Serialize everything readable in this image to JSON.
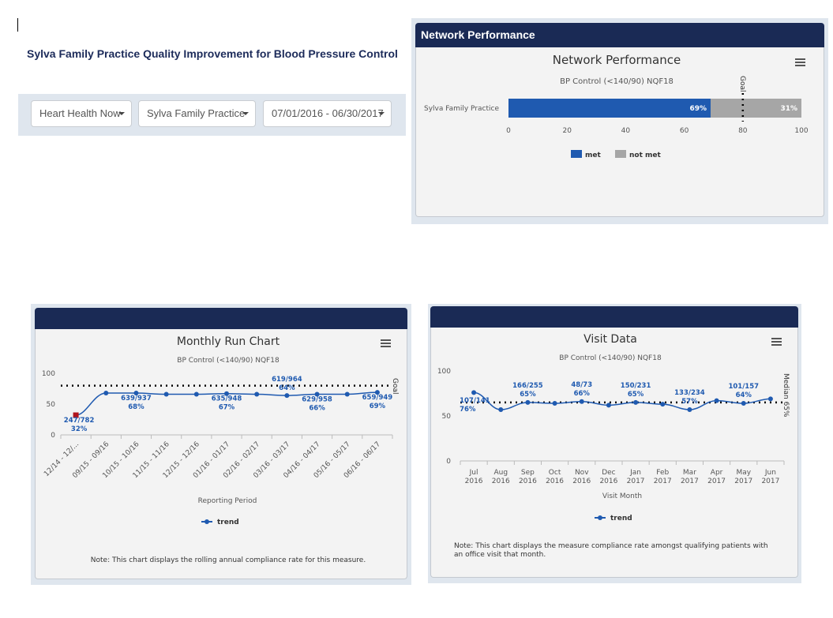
{
  "page": {
    "title": "Sylva Family Practice Quality Improvement for Blood Pressure Control"
  },
  "filters": {
    "program": "Heart Health Now",
    "practice": "Sylva Family Practice",
    "period": "07/01/2016 - 06/30/2017"
  },
  "network_panel": {
    "header": "Network Performance"
  },
  "colors": {
    "navy": "#1a2a55",
    "met": "#1f5ab0",
    "not_met": "#a6a6a6",
    "trend": "#1f5ab0",
    "first_point": "#b0141c"
  },
  "chart_data": [
    {
      "type": "bar",
      "orientation": "horizontal",
      "stacked": true,
      "title": "Network Performance",
      "subtitle": "BP Control (<140/90) NQF18",
      "categories": [
        "Sylva Family Practice"
      ],
      "series": [
        {
          "name": "met",
          "values": [
            69
          ],
          "labels": [
            "69%"
          ]
        },
        {
          "name": "not met",
          "values": [
            31
          ],
          "labels": [
            "31%"
          ]
        }
      ],
      "xlim": [
        0,
        100
      ],
      "ticks": [
        0,
        20,
        40,
        60,
        80,
        100
      ],
      "goal": {
        "value": 80,
        "label": "Goal"
      },
      "legend": "bottom-center",
      "menu_icon": "hamburger-icon"
    },
    {
      "type": "line",
      "title": "Monthly Run Chart",
      "subtitle": "BP Control (<140/90) NQF18",
      "xlabel": "Reporting Period",
      "categories": [
        "12/14 - 12/...",
        "09/15 - 09/16",
        "10/15 - 10/16",
        "11/15 - 11/16",
        "12/15 - 12/16",
        "01/16 - 01/17",
        "02/16 - 02/17",
        "03/16 - 03/17",
        "04/16 - 04/17",
        "05/16 - 05/17",
        "06/16 - 06/17"
      ],
      "series": [
        {
          "name": "trend",
          "values": [
            32,
            68,
            68,
            66,
            66,
            67,
            66,
            64,
            66,
            66,
            69
          ]
        }
      ],
      "point_labels": [
        {
          "i": 0,
          "text": [
            "247/782",
            "32%"
          ]
        },
        {
          "i": 2,
          "text": [
            "639/937",
            "68%"
          ]
        },
        {
          "i": 5,
          "text": [
            "635/948",
            "67%"
          ]
        },
        {
          "i": 7,
          "text": [
            "619/964",
            "64%"
          ]
        },
        {
          "i": 8,
          "text": [
            "629/958",
            "66%"
          ]
        },
        {
          "i": 10,
          "text": [
            "659/949",
            "69%"
          ]
        }
      ],
      "ylim": [
        0,
        100
      ],
      "yticks": [
        0,
        50,
        100
      ],
      "goal": {
        "value": 80,
        "label": "Goal"
      },
      "legend": "bottom-center",
      "note": "Note: This chart displays the rolling annual compliance rate for this measure.",
      "menu_icon": "hamburger-icon"
    },
    {
      "type": "line",
      "title": "Visit Data",
      "subtitle": "BP Control (<140/90) NQF18",
      "xlabel": "Visit Month",
      "categories": [
        [
          "Jul",
          "2016"
        ],
        [
          "Aug",
          "2016"
        ],
        [
          "Sep",
          "2016"
        ],
        [
          "Oct",
          "2016"
        ],
        [
          "Nov",
          "2016"
        ],
        [
          "Dec",
          "2016"
        ],
        [
          "Jan",
          "2017"
        ],
        [
          "Feb",
          "2017"
        ],
        [
          "Mar",
          "2017"
        ],
        [
          "Apr",
          "2017"
        ],
        [
          "May",
          "2017"
        ],
        [
          "Jun",
          "2017"
        ]
      ],
      "series": [
        {
          "name": "trend",
          "values": [
            76,
            57,
            65,
            64,
            66,
            62,
            65,
            63,
            57,
            67,
            64,
            69
          ]
        }
      ],
      "point_labels": [
        {
          "i": 0,
          "text": [
            "107/141",
            "76%"
          ]
        },
        {
          "i": 2,
          "text": [
            "166/255",
            "65%"
          ]
        },
        {
          "i": 4,
          "text": [
            "48/73",
            "66%"
          ]
        },
        {
          "i": 6,
          "text": [
            "150/231",
            "65%"
          ]
        },
        {
          "i": 8,
          "text": [
            "133/234",
            "57%"
          ]
        },
        {
          "i": 10,
          "text": [
            "101/157",
            "64%"
          ]
        }
      ],
      "ylim": [
        0,
        100
      ],
      "yticks": [
        0,
        50,
        100
      ],
      "median": {
        "value": 65,
        "label": "Median 65%"
      },
      "legend": "bottom-center",
      "note": [
        "Note: This chart displays the measure compliance rate amongst qualifying patients with",
        "an office visit that month."
      ],
      "menu_icon": "hamburger-icon"
    }
  ]
}
